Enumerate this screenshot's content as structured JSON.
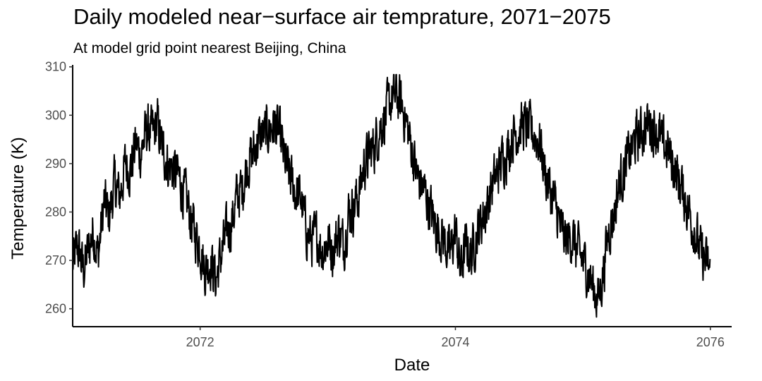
{
  "chart_data": {
    "type": "line",
    "title": "Daily modeled near−surface air temprature, 2071−2075",
    "subtitle": "At model grid point nearest Beijing, China",
    "xlabel": "Date",
    "ylabel": "Temperature (K)",
    "xlim": [
      "2071-01-01",
      "2076-03-02"
    ],
    "ylim": [
      256.3,
      310.4
    ],
    "x_ticks": [
      "2072",
      "2074",
      "2076"
    ],
    "y_ticks": [
      "260",
      "270",
      "280",
      "290",
      "300",
      "310"
    ],
    "grid": false,
    "legend": "none",
    "line_color": "#000000",
    "series": [
      {
        "x": [
          "2071-01-01",
          "2071-01-15",
          "2071-02-01",
          "2071-02-15",
          "2071-03-01",
          "2071-03-15",
          "2071-04-01",
          "2071-04-15",
          "2071-05-01",
          "2071-05-15",
          "2071-06-01",
          "2071-06-15",
          "2071-07-01",
          "2071-07-15",
          "2071-08-01",
          "2071-08-15",
          "2071-09-01",
          "2071-09-15",
          "2071-10-01",
          "2071-10-15",
          "2071-11-01",
          "2071-11-15",
          "2071-12-01",
          "2071-12-15",
          "2072-01-01",
          "2072-01-15",
          "2072-02-01",
          "2072-02-15",
          "2072-03-01",
          "2072-03-15",
          "2072-04-01",
          "2072-04-15",
          "2072-05-01",
          "2072-05-15",
          "2072-06-01",
          "2072-06-15",
          "2072-07-01",
          "2072-07-15",
          "2072-08-01",
          "2072-08-15",
          "2072-09-01",
          "2072-09-15",
          "2072-10-01",
          "2072-10-15",
          "2072-11-01",
          "2072-11-15",
          "2072-12-01",
          "2072-12-15",
          "2073-01-01",
          "2073-01-15",
          "2073-02-01",
          "2073-02-15",
          "2073-03-01",
          "2073-03-15",
          "2073-04-01",
          "2073-04-15",
          "2073-05-01",
          "2073-05-15",
          "2073-06-01",
          "2073-06-15",
          "2073-07-01",
          "2073-07-15",
          "2073-08-01",
          "2073-08-15",
          "2073-09-01",
          "2073-09-15",
          "2073-10-01",
          "2073-10-15",
          "2073-11-01",
          "2073-11-15",
          "2073-12-01",
          "2073-12-15",
          "2074-01-01",
          "2074-01-15",
          "2074-02-01",
          "2074-02-15",
          "2074-03-01",
          "2074-03-15",
          "2074-04-01",
          "2074-04-15",
          "2074-05-01",
          "2074-05-15",
          "2074-06-01",
          "2074-06-15",
          "2074-07-01",
          "2074-07-15",
          "2074-08-01",
          "2074-08-15",
          "2074-09-01",
          "2074-09-15",
          "2074-10-01",
          "2074-10-15",
          "2074-11-01",
          "2074-11-15",
          "2074-12-01",
          "2074-12-15",
          "2075-01-01",
          "2075-01-15",
          "2075-02-01",
          "2075-02-15",
          "2075-03-01",
          "2075-03-15",
          "2075-04-01",
          "2075-04-15",
          "2075-05-01",
          "2075-05-15",
          "2075-06-01",
          "2075-06-15",
          "2075-07-01",
          "2075-07-15",
          "2075-08-01",
          "2075-08-15",
          "2075-09-01",
          "2075-09-15",
          "2075-10-01",
          "2075-10-15",
          "2075-11-01",
          "2075-11-15",
          "2075-12-01",
          "2075-12-15",
          "2075-12-31"
        ],
        "y": [
          269,
          273,
          268,
          272,
          276,
          271,
          282,
          279,
          286,
          283,
          290,
          289,
          294,
          292,
          297,
          296,
          298,
          293,
          290,
          289,
          287,
          284,
          280,
          276,
          273,
          268,
          270,
          266,
          271,
          275,
          278,
          283,
          285,
          290,
          292,
          295,
          296,
          297,
          298,
          296,
          290,
          287,
          284,
          283,
          276,
          274,
          275,
          272,
          274,
          272,
          276,
          273,
          280,
          281,
          284,
          290,
          292,
          294,
          298,
          300,
          303,
          304,
          302,
          298,
          292,
          287,
          285,
          282,
          278,
          276,
          274,
          271,
          276,
          268,
          273,
          271,
          275,
          278,
          281,
          285,
          288,
          291,
          293,
          296,
          297,
          298,
          297,
          296,
          294,
          288,
          284,
          281,
          276,
          274,
          275,
          272,
          270,
          268,
          264,
          262,
          268,
          276,
          280,
          286,
          289,
          292,
          295,
          296,
          298,
          298,
          297,
          294,
          293,
          290,
          287,
          284,
          280,
          277,
          272,
          270,
          268
        ]
      }
    ]
  }
}
